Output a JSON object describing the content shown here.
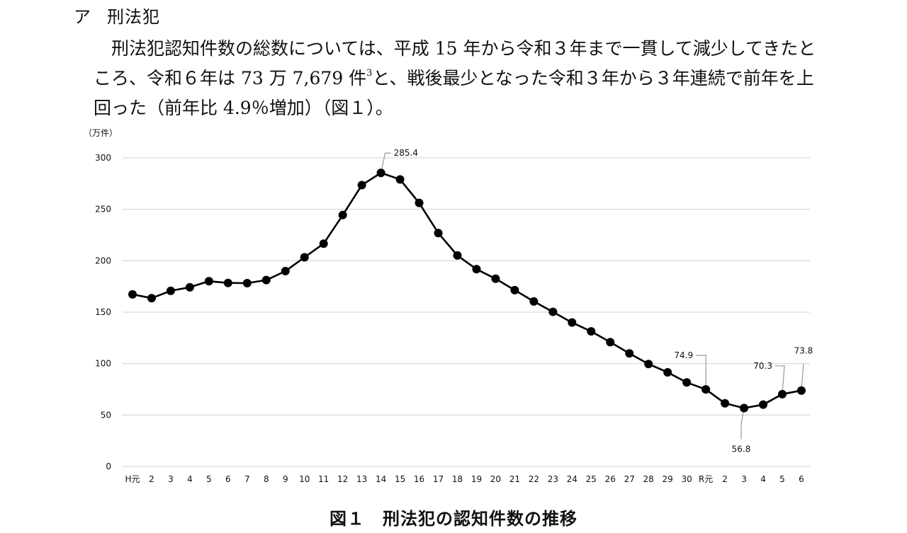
{
  "section": {
    "marker": "ア",
    "title": "刑法犯"
  },
  "paragraph": {
    "text_before_note": "刑法犯認知件数の総数については、平成 15 年から令和３年まで一貫して減少してきたところ、令和６年は 73 万 7,679 件",
    "note_ref": "3",
    "text_after_note": "と、戦後最少となった令和３年から３年連続で前年を上回った（前年比 4.9％増加）（図１）。"
  },
  "chart_data": {
    "type": "line",
    "title": "図１　刑法犯の認知件数の推移",
    "ylabel": "（万件）",
    "xlabel": "",
    "ylim": [
      0,
      300
    ],
    "yticks": [
      0,
      50,
      100,
      150,
      200,
      250,
      300
    ],
    "grid": true,
    "legend": "none",
    "categories": [
      "H元",
      "2",
      "3",
      "4",
      "5",
      "6",
      "7",
      "8",
      "9",
      "10",
      "11",
      "12",
      "13",
      "14",
      "15",
      "16",
      "17",
      "18",
      "19",
      "20",
      "21",
      "22",
      "23",
      "24",
      "25",
      "26",
      "27",
      "28",
      "29",
      "30",
      "R元",
      "2",
      "3",
      "4",
      "5",
      "6"
    ],
    "values": [
      167.3,
      163.6,
      170.7,
      174.2,
      180.1,
      178.4,
      178.2,
      181.2,
      189.9,
      203.3,
      216.6,
      244.4,
      273.5,
      285.4,
      279.0,
      256.2,
      226.9,
      205.1,
      191.8,
      182.5,
      171.4,
      160.4,
      150.3,
      139.9,
      131.3,
      120.8,
      109.9,
      99.6,
      91.5,
      81.7,
      74.9,
      61.4,
      56.8,
      60.1,
      70.3,
      73.8
    ],
    "annotations": [
      {
        "index": 13,
        "label": "285.4"
      },
      {
        "index": 30,
        "label": "74.9"
      },
      {
        "index": 32,
        "label": "56.8"
      },
      {
        "index": 34,
        "label": "70.3"
      },
      {
        "index": 35,
        "label": "73.8"
      }
    ],
    "colors": {
      "line": "#000000",
      "grid": "#d0d0d0",
      "marker": "#000000"
    }
  }
}
